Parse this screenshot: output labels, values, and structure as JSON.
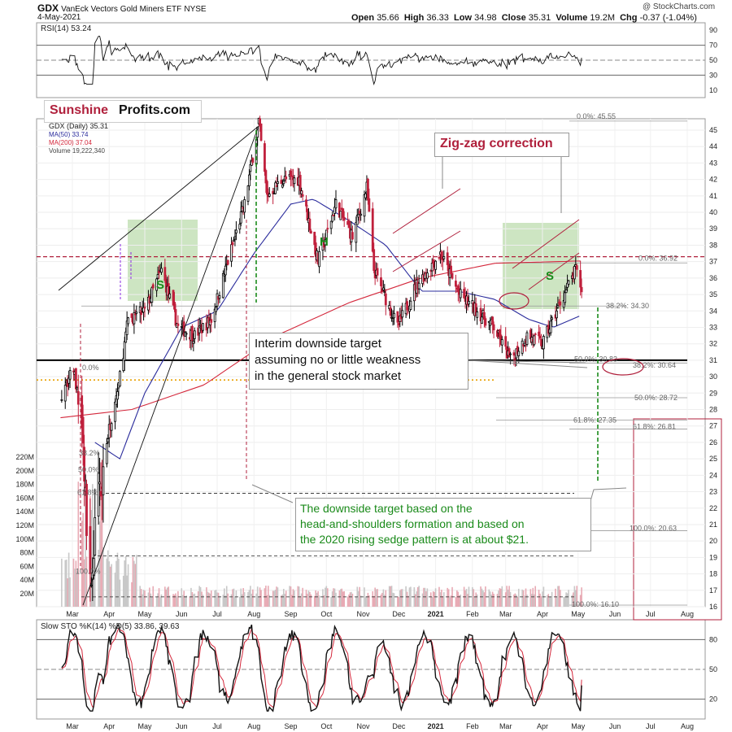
{
  "header": {
    "symbol": "GDX",
    "name": "VanEck Vectors Gold Miners ETF",
    "exchange": "NYSE",
    "date": "4-May-2021",
    "open_label": "Open",
    "open": "35.66",
    "high_label": "High",
    "high": "36.33",
    "low_label": "Low",
    "low": "34.98",
    "close_label": "Close",
    "close": "35.31",
    "volume_label": "Volume",
    "volume": "19.2M",
    "chg_label": "Chg",
    "chg": "-0.37 (-1.04%)",
    "copyright": "@ StockCharts.com"
  },
  "brand": {
    "part1": "Sunshine",
    "part2": "Profits.com"
  },
  "legend": {
    "rsi": "RSI(14) 53.24",
    "price": "GDX (Daily) 35.31",
    "ma50": "MA(50) 33.74",
    "ma200": "MA(200) 37.04",
    "volume": "Volume 19,222,340",
    "sto": "Slow STO %K(14) %D(5) 33.86, 39.63"
  },
  "colors": {
    "price_up": "#000000",
    "price_down": "#c0203c",
    "ma50": "#2b2c9c",
    "ma200": "#d4283c",
    "pattern_box": "#bcdcae",
    "target_line": "#1a8a1a",
    "accent": "#b0203c",
    "fib_orange": "#e8a000"
  },
  "annotations": {
    "zigzag": "Zig-zag correction",
    "head": "H",
    "shoulder_left": "S",
    "shoulder_right": "S",
    "interim": "Interim downside target\nassuming no or little weakness\nin the general stock market",
    "target": "The downside target based on the\nhead-and-shoulders formation and based on\nthe 2020 rising sedge pattern is at about $21."
  },
  "fib_labels": {
    "f0_top": "0.0%: 45.55",
    "f0_mid": "0.0%: 36.92",
    "f382": "38.2%: 34.30",
    "f50_a": "50.0%: 30.83",
    "f382_b": "38.2%: 30.64",
    "f50_b": "50.0%: 28.72",
    "f618_a": "61.8%: 27.35",
    "f618_b": "61.8%: 26.81",
    "f100": "100.0%: 20.63",
    "f100_low": "100.0%: 16.10",
    "left_0": "0.0%",
    "left_382": "38.2%",
    "left_50": "50.0%",
    "left_618": "61.8%",
    "left_100": "100.0%"
  },
  "chart_data": {
    "type": "candlestick",
    "title": "GDX VanEck Vectors Gold Miners ETF NYSE",
    "price_axis": {
      "min": 16,
      "max": 46,
      "ticks": [
        16,
        17,
        18,
        19,
        20,
        21,
        22,
        23,
        24,
        25,
        26,
        27,
        28,
        29,
        30,
        31,
        32,
        33,
        34,
        35,
        36,
        37,
        38,
        39,
        40,
        41,
        42,
        43,
        44,
        45
      ]
    },
    "volume_axis": {
      "ticks": [
        "20M",
        "40M",
        "60M",
        "80M",
        "100M",
        "120M",
        "140M",
        "160M",
        "180M",
        "200M",
        "220M"
      ]
    },
    "rsi_axis": {
      "ticks": [
        10,
        30,
        50,
        70,
        90
      ]
    },
    "sto_axis": {
      "ticks": [
        20,
        50,
        80
      ]
    },
    "x_labels": [
      "Mar",
      "Apr",
      "May",
      "Jun",
      "Jul",
      "Aug",
      "Sep",
      "Oct",
      "Nov",
      "Dec",
      "2021",
      "Feb",
      "Mar",
      "Apr",
      "May",
      "Jun",
      "Jul",
      "Aug"
    ],
    "price_anchors": [
      [
        "2020-02-21",
        29.0
      ],
      [
        "2020-03-02",
        30.5
      ],
      [
        "2020-03-09",
        27.0
      ],
      [
        "2020-03-13",
        21.0
      ],
      [
        "2020-03-16",
        17.0
      ],
      [
        "2020-03-23",
        23.0
      ],
      [
        "2020-03-30",
        26.0
      ],
      [
        "2020-04-09",
        29.5
      ],
      [
        "2020-04-17",
        33.5
      ],
      [
        "2020-05-01",
        34.0
      ],
      [
        "2020-05-15",
        36.5
      ],
      [
        "2020-05-29",
        33.0
      ],
      [
        "2020-06-12",
        32.5
      ],
      [
        "2020-06-26",
        33.5
      ],
      [
        "2020-07-10",
        37.0
      ],
      [
        "2020-07-24",
        40.5
      ],
      [
        "2020-08-05",
        45.5
      ],
      [
        "2020-08-12",
        41.0
      ],
      [
        "2020-08-25",
        42.0
      ],
      [
        "2020-09-08",
        42.0
      ],
      [
        "2020-09-24",
        37.0
      ],
      [
        "2020-10-09",
        40.5
      ],
      [
        "2020-10-23",
        38.5
      ],
      [
        "2020-11-04",
        41.5
      ],
      [
        "2020-11-10",
        36.5
      ],
      [
        "2020-11-30",
        33.0
      ],
      [
        "2020-12-15",
        35.5
      ],
      [
        "2021-01-05",
        37.5
      ],
      [
        "2021-01-21",
        35.0
      ],
      [
        "2021-02-05",
        34.0
      ],
      [
        "2021-02-19",
        33.0
      ],
      [
        "2021-03-05",
        31.0
      ],
      [
        "2021-03-19",
        32.5
      ],
      [
        "2021-04-01",
        32.0
      ],
      [
        "2021-04-16",
        34.5
      ],
      [
        "2021-04-29",
        36.5
      ],
      [
        "2021-05-04",
        35.31
      ]
    ],
    "ma50_anchors": [
      [
        "2020-03-20",
        26.0
      ],
      [
        "2020-04-10",
        25.0
      ],
      [
        "2020-05-01",
        29.0
      ],
      [
        "2020-06-01",
        33.0
      ],
      [
        "2020-07-01",
        34.0
      ],
      [
        "2020-08-01",
        37.5
      ],
      [
        "2020-09-01",
        40.5
      ],
      [
        "2020-09-20",
        40.8
      ],
      [
        "2020-10-20",
        39.5
      ],
      [
        "2020-11-20",
        38.0
      ],
      [
        "2020-12-20",
        35.2
      ],
      [
        "2021-01-20",
        35.2
      ],
      [
        "2021-02-20",
        34.7
      ],
      [
        "2021-03-20",
        33.5
      ],
      [
        "2021-04-10",
        33.0
      ],
      [
        "2021-05-04",
        33.74
      ]
    ],
    "ma200_anchors": [
      [
        "2020-02-20",
        27.5
      ],
      [
        "2020-04-20",
        28.0
      ],
      [
        "2020-06-20",
        29.5
      ],
      [
        "2020-08-20",
        32.5
      ],
      [
        "2020-10-20",
        34.5
      ],
      [
        "2020-12-20",
        36.0
      ],
      [
        "2021-02-20",
        36.9
      ],
      [
        "2021-05-04",
        37.04
      ]
    ],
    "levels": {
      "resistance_dashed_red": 37.3,
      "support_black": 31.0,
      "fib_orange_dotted": 29.8
    },
    "targets": {
      "interim": 26.81,
      "hs_target": 21.0,
      "head_top": 45.55,
      "neckline": 31.0
    },
    "rsi_last": 53.24,
    "sto_k_last": 33.86,
    "sto_d_last": 39.63
  }
}
